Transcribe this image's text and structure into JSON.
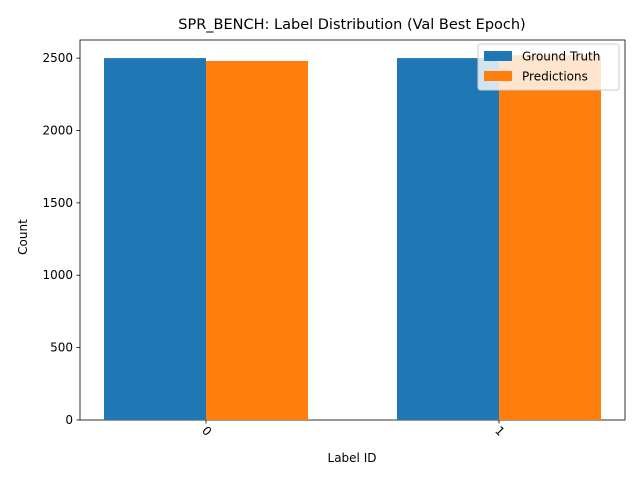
{
  "chart_data": {
    "type": "bar",
    "title": "SPR_BENCH: Label Distribution (Val Best Epoch)",
    "xlabel": "Label ID",
    "ylabel": "Count",
    "categories": [
      "0",
      "1"
    ],
    "series": [
      {
        "name": "Ground Truth",
        "values": [
          2500,
          2500
        ],
        "color": "#1f77b4"
      },
      {
        "name": "Predictions",
        "values": [
          2480,
          2520
        ],
        "color": "#ff7f0e"
      }
    ],
    "ylim": [
      0,
      2625
    ],
    "yticks": [
      0,
      500,
      1000,
      1500,
      2000,
      2500
    ],
    "xtick_rotation": 45,
    "grid": false,
    "legend_position": "top-right"
  }
}
